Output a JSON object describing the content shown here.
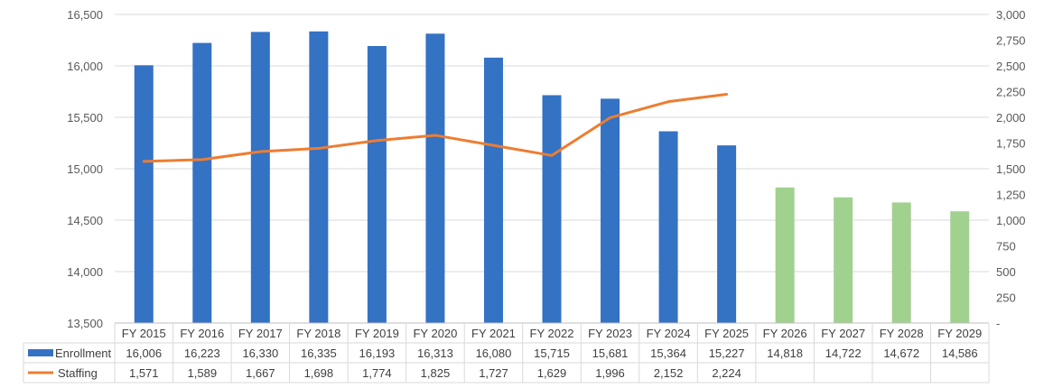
{
  "chart_data": {
    "type": "bar",
    "categories": [
      "FY 2015",
      "FY 2016",
      "FY 2017",
      "FY 2018",
      "FY 2019",
      "FY 2020",
      "FY 2021",
      "FY 2022",
      "FY 2023",
      "FY 2024",
      "FY 2025",
      "FY 2026",
      "FY 2027",
      "FY 2028",
      "FY 2029"
    ],
    "series": [
      {
        "name": "Enrollment",
        "kind": "bar",
        "axis": "left",
        "color": "#3472C4",
        "projected_color": "#A1D18E",
        "projected_from": "FY 2026",
        "values": [
          16006,
          16223,
          16330,
          16335,
          16193,
          16313,
          16080,
          15715,
          15681,
          15364,
          15227,
          14818,
          14722,
          14672,
          14586
        ],
        "labels": [
          "16,006",
          "16,223",
          "16,330",
          "16,335",
          "16,193",
          "16,313",
          "16,080",
          "15,715",
          "15,681",
          "15,364",
          "15,227",
          "14,818",
          "14,722",
          "14,672",
          "14,586"
        ]
      },
      {
        "name": "Staffing",
        "kind": "line",
        "axis": "right",
        "color": "#ED7D31",
        "values": [
          1571,
          1589,
          1667,
          1698,
          1774,
          1825,
          1727,
          1629,
          1996,
          2152,
          2224,
          null,
          null,
          null,
          null
        ],
        "labels": [
          "1,571",
          "1,589",
          "1,667",
          "1,698",
          "1,774",
          "1,825",
          "1,727",
          "1,629",
          "1,996",
          "2,152",
          "2,224",
          "",
          "",
          "",
          ""
        ]
      }
    ],
    "ylim_left": [
      13500,
      16500
    ],
    "ylim_right": [
      0,
      3000
    ],
    "yticks_left": [
      "13,500",
      "14,000",
      "14,500",
      "15,000",
      "15,500",
      "16,000",
      "16,500"
    ],
    "yticks_right": [
      "-",
      "250",
      "500",
      "750",
      "1,000",
      "1,250",
      "1,500",
      "1,750",
      "2,000",
      "2,250",
      "2,500",
      "2,750",
      "3,000"
    ],
    "grid": true,
    "legend": "data-table",
    "title": "",
    "xlabel": "",
    "ylabel": ""
  }
}
